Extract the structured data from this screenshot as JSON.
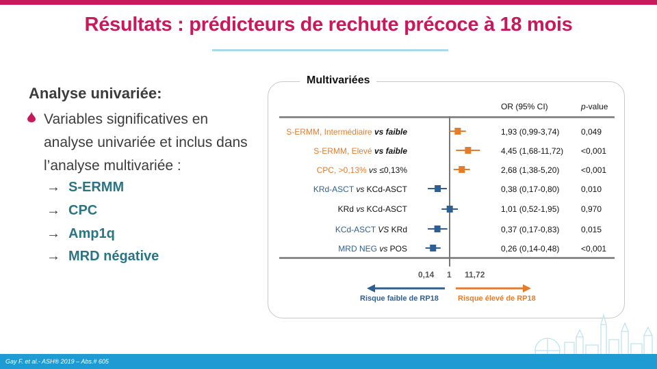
{
  "slide": {
    "title": "Résultats : prédicteurs de rechute précoce à 18 mois",
    "left": {
      "heading": "Analyse univariée:",
      "bullet": "Variables significatives en analyse univariée et inclus dans l’analyse multivariée :",
      "items": [
        "S-ERMM",
        "CPC",
        "Amp1q",
        "MRD négative"
      ]
    },
    "panel": {
      "title": "Multivariées",
      "col_or": "OR (95% CI)",
      "col_p": "-value",
      "col_p_prefix": "p",
      "risk_low": "Risque faible de RP18",
      "risk_high": "Risque élevé de RP18",
      "tick_min": "0,14",
      "tick_one": "1",
      "tick_max": "11,72"
    },
    "footer": "Gay F. et al.- ASH® 2019 – Abs.# 605"
  },
  "chart_data": {
    "type": "forest",
    "reference_value": 1,
    "axis_scale": "log",
    "axis_ticks": [
      0.14,
      1,
      11.72
    ],
    "rows": [
      {
        "label_main": "S-ERMM, Intermédiaire",
        "label_vs": "vs",
        "label_ref": "faible",
        "or": 1.93,
        "ci": [
          0.99,
          3.74
        ],
        "or_text": "1,93 (0,99-3,74)",
        "p": "0,049",
        "color": "#e57c2b"
      },
      {
        "label_main": "S-ERMM, Elevé",
        "label_vs": "vs",
        "label_ref": "faible",
        "or": 4.45,
        "ci": [
          1.68,
          11.72
        ],
        "or_text": "4,45 (1,68-11,72)",
        "p": "<0,001",
        "color": "#e57c2b"
      },
      {
        "label_main": "CPC, >0,13%",
        "label_vs": "vs",
        "label_ref": "≤0,13%",
        "or": 2.68,
        "ci": [
          1.38,
          5.2
        ],
        "or_text": "2,68 (1,38-5,20)",
        "p": "<0,001",
        "color": "#e57c2b"
      },
      {
        "label_main": "KRd-ASCT",
        "label_vs": "vs",
        "label_ref": "KCd-ASCT",
        "or": 0.38,
        "ci": [
          0.17,
          0.8
        ],
        "or_text": "0,38 (0,17-0,80)",
        "p": "0,010",
        "color": "#2e5f93"
      },
      {
        "label_main": "KRd",
        "label_vs": "vs",
        "label_ref": "KCd-ASCT",
        "or": 1.01,
        "ci": [
          0.52,
          1.95
        ],
        "or_text": "1,01 (0,52-1,95)",
        "p": "0,970",
        "color": "#2e5f93"
      },
      {
        "label_main": "KCd-ASCT",
        "label_vs": "VS",
        "label_ref": "KRd",
        "or": 0.37,
        "ci": [
          0.17,
          0.83
        ],
        "or_text": "0,37 (0,17-0,83)",
        "p": "0,015",
        "color": "#2e5f93"
      },
      {
        "label_main": "MRD NEG",
        "label_vs": "vs",
        "label_ref": "POS",
        "or": 0.26,
        "ci": [
          0.14,
          0.48
        ],
        "or_text": "0,26 (0,14-0,48)",
        "p": "<0,001",
        "color": "#2e5f93"
      }
    ],
    "colors": {
      "increase": "#e57c2b",
      "decrease": "#2e5f93",
      "title": "#c8195c",
      "footer": "#1f9bd4"
    }
  }
}
